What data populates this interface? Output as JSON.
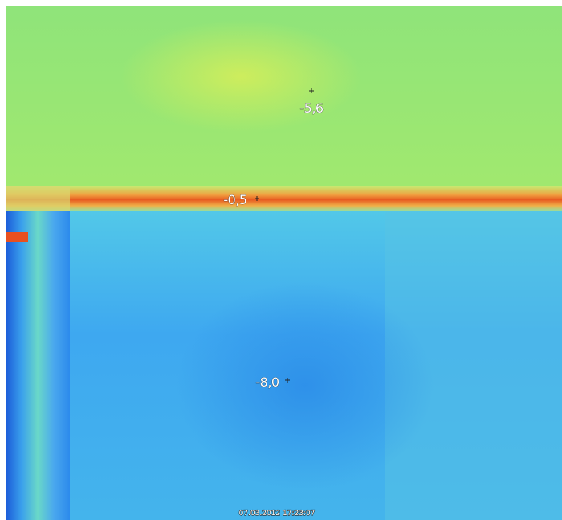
{
  "measurements": [
    {
      "label": "-5,6"
    },
    {
      "label": "-0,5"
    },
    {
      "label": "-8,0"
    }
  ],
  "timestamp": "07.03.2012 17:23:07"
}
